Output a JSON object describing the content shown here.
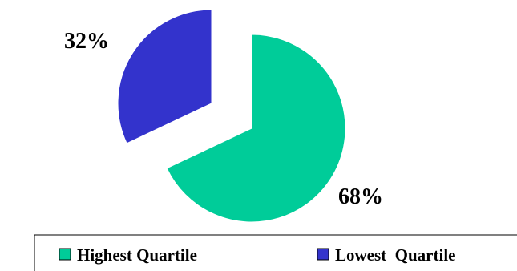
{
  "chart_data": {
    "type": "pie",
    "exploded": true,
    "slices": [
      {
        "name": "Highest Quartile",
        "value": 68,
        "label": "68%",
        "color": "#00cc99"
      },
      {
        "name": "Lowest Quartile",
        "value": 32,
        "label": "32%",
        "color": "#3333cc"
      }
    ],
    "legend": {
      "placement": "bottom",
      "entries": [
        "Highest Quartile",
        "Lowest  Quartile"
      ]
    }
  }
}
